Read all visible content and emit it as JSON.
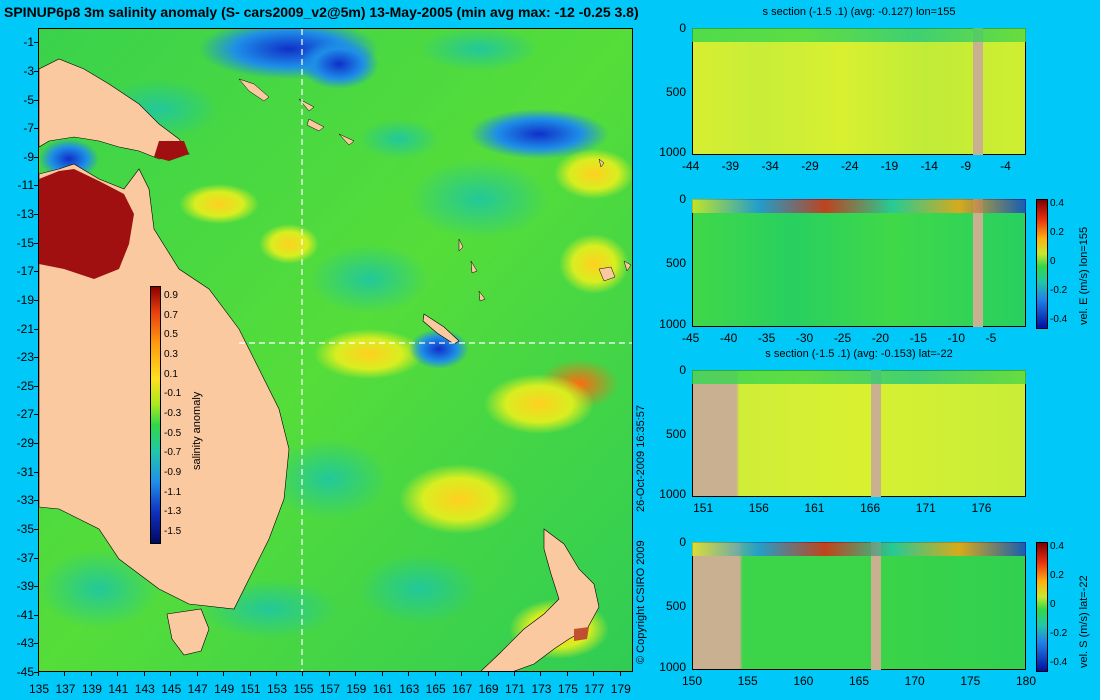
{
  "map": {
    "title": "SPINUP6p8 3m salinity anomaly (S- cars2009_v2@5m) 13-May-2005 (min avg max: -12 -0.25 3.8)",
    "x_ticks": [
      "135",
      "137",
      "139",
      "141",
      "143",
      "145",
      "147",
      "149",
      "151",
      "153",
      "155",
      "157",
      "159",
      "161",
      "163",
      "165",
      "167",
      "169",
      "171",
      "173",
      "175",
      "177",
      "179"
    ],
    "y_ticks": [
      "-1",
      "-3",
      "-5",
      "-7",
      "-9",
      "-11",
      "-13",
      "-15",
      "-17",
      "-19",
      "-21",
      "-23",
      "-25",
      "-27",
      "-29",
      "-31",
      "-33",
      "-35",
      "-37",
      "-39",
      "-41",
      "-43",
      "-45"
    ],
    "crosshair_lon": 155,
    "crosshair_lat": -22,
    "colorbar": {
      "label": "salinity anomaly",
      "ticks": [
        "0.9",
        "0.7",
        "0.5",
        "0.3",
        "0.1",
        "-0.1",
        "-0.3",
        "-0.5",
        "-0.7",
        "-0.9",
        "-1.1",
        "-1.3",
        "-1.5"
      ],
      "range": [
        -1.6,
        1.0
      ]
    },
    "colors": {
      "land": "#fbc9a0",
      "ocean": "#2fd84a",
      "background": "#00c8f8"
    }
  },
  "side_text": {
    "timestamp": "26-Oct-2009 16:35:57",
    "copyright": "© Copyright CSIRO 2009"
  },
  "panels": [
    {
      "title": "s section (-1.5 .1) (avg: -0.127) lon=155",
      "x_ticks": [
        "-44",
        "-39",
        "-34",
        "-29",
        "-24",
        "-19",
        "-14",
        "-9",
        "-4"
      ],
      "y_ticks": [
        "0",
        "500",
        "1000"
      ],
      "has_colorbar": false
    },
    {
      "title": "",
      "x_ticks": [
        "-45",
        "-40",
        "-35",
        "-30",
        "-25",
        "-20",
        "-15",
        "-10",
        "-5"
      ],
      "y_ticks": [
        "0",
        "500",
        "1000"
      ],
      "has_colorbar": true,
      "colorbar_label": "vel. E (m/s) lon=155",
      "colorbar_ticks": [
        "0.4",
        "0.2",
        "0",
        "-0.2",
        "-0.4"
      ]
    },
    {
      "title": "s section (-1.5 .1) (avg: -0.153) lat=-22",
      "x_ticks": [
        "151",
        "156",
        "161",
        "166",
        "171",
        "176"
      ],
      "y_ticks": [
        "0",
        "500",
        "1000"
      ],
      "has_colorbar": false
    },
    {
      "title": "",
      "x_ticks": [
        "150",
        "155",
        "160",
        "165",
        "170",
        "175",
        "180"
      ],
      "y_ticks": [
        "0",
        "500",
        "1000"
      ],
      "has_colorbar": true,
      "colorbar_label": "vel. S (m/s) lat=-22",
      "colorbar_ticks": [
        "0.4",
        "0.2",
        "0",
        "-0.2",
        "-0.4"
      ]
    }
  ]
}
